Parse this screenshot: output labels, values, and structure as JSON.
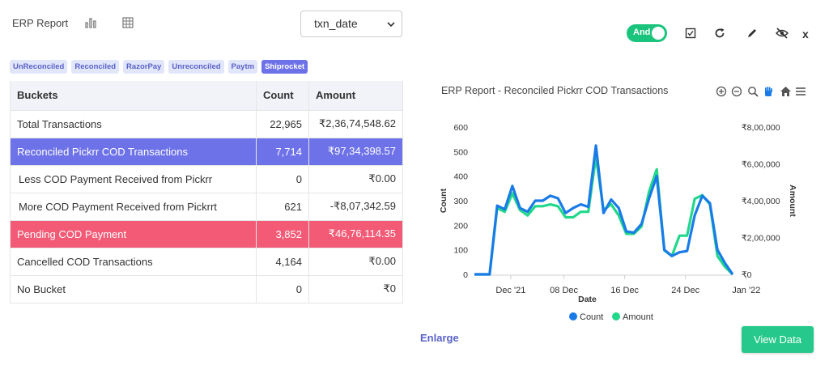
{
  "header": {
    "title": "ERP Report",
    "select_value": "txn_date"
  },
  "toolbar": {
    "toggle_label": "And",
    "close_label": "x"
  },
  "chips": [
    {
      "label": "UnReconciled",
      "active": false
    },
    {
      "label": "Reconciled",
      "active": false
    },
    {
      "label": "RazorPay",
      "active": false
    },
    {
      "label": "Unreconciled",
      "active": false
    },
    {
      "label": "Paytm",
      "active": false
    },
    {
      "label": "Shiprocket",
      "active": true
    }
  ],
  "table": {
    "headers": [
      "Buckets",
      "Count",
      "Amount"
    ],
    "rows": [
      {
        "bucket": "Total Transactions",
        "count": "22,965",
        "amount": "₹2,36,74,548.62"
      },
      {
        "bucket": "Reconciled Pickrr COD Transactions",
        "count": "7,714",
        "amount": "₹97,34,398.57"
      },
      {
        "bucket": "Less COD Payment Received from Pickrr",
        "count": "0",
        "amount": "₹0.00"
      },
      {
        "bucket": "More COD Payment Received from Pickrrt",
        "count": "621",
        "amount": "-₹8,07,342.59"
      },
      {
        "bucket": "Pending COD Payment",
        "count": "3,852",
        "amount": "₹46,76,114.35"
      },
      {
        "bucket": "Cancelled COD Transactions",
        "count": "4,164",
        "amount": "₹0.00"
      },
      {
        "bucket": "No Bucket",
        "count": "0",
        "amount": "₹0"
      }
    ]
  },
  "chart_data": {
    "type": "line",
    "title": "ERP Report - Reconciled Pickrr COD Transactions",
    "xlabel": "Date",
    "ylabel": "Count",
    "y2label": "Amount",
    "ylim": [
      0,
      600
    ],
    "y2lim": [
      0,
      800000
    ],
    "y_ticks": [
      "0",
      "100",
      "200",
      "300",
      "400",
      "500",
      "600"
    ],
    "y2_ticks": [
      "₹0",
      "₹2,00,000",
      "₹4,00,000",
      "₹6,00,000",
      "₹8,00,000"
    ],
    "x_ticks": [
      "Dec '21",
      "08 Dec",
      "16 Dec",
      "24 Dec",
      "Jan '22"
    ],
    "x_start": "2021-11-26",
    "x": [
      "2021-11-26",
      "2021-11-27",
      "2021-11-28",
      "2021-11-29",
      "2021-11-30",
      "2021-12-01",
      "2021-12-02",
      "2021-12-03",
      "2021-12-04",
      "2021-12-05",
      "2021-12-06",
      "2021-12-07",
      "2021-12-08",
      "2021-12-09",
      "2021-12-10",
      "2021-12-11",
      "2021-12-12",
      "2021-12-13",
      "2021-12-14",
      "2021-12-15",
      "2021-12-16",
      "2021-12-17",
      "2021-12-18",
      "2021-12-19",
      "2021-12-20",
      "2021-12-21",
      "2021-12-22",
      "2021-12-23",
      "2021-12-24",
      "2021-12-25",
      "2021-12-26",
      "2021-12-27",
      "2021-12-28",
      "2021-12-29",
      "2021-12-30"
    ],
    "series": [
      {
        "name": "Count",
        "color": "#1a7be8",
        "axis": "left",
        "values": [
          0,
          0,
          0,
          280,
          265,
          360,
          270,
          255,
          300,
          300,
          320,
          310,
          250,
          270,
          285,
          275,
          525,
          250,
          305,
          270,
          175,
          170,
          205,
          310,
          400,
          100,
          75,
          90,
          95,
          240,
          320,
          290,
          100,
          45,
          0
        ]
      },
      {
        "name": "Amount",
        "color": "#21d88a",
        "axis": "right",
        "values": [
          0,
          0,
          0,
          360000,
          340000,
          440000,
          350000,
          320000,
          370000,
          370000,
          380000,
          370000,
          310000,
          310000,
          340000,
          340000,
          640000,
          350000,
          380000,
          320000,
          220000,
          220000,
          260000,
          450000,
          570000,
          130000,
          100000,
          210000,
          210000,
          410000,
          430000,
          380000,
          100000,
          40000,
          0
        ]
      }
    ],
    "legend": "bottom"
  },
  "footer": {
    "enlarge_label": "Enlarge",
    "view_button": "View Data"
  },
  "colors": {
    "accent": "#6e72e8",
    "danger": "#f25a76",
    "success": "#26c98b",
    "count_line": "#1a7be8",
    "amount_line": "#21d88a"
  }
}
